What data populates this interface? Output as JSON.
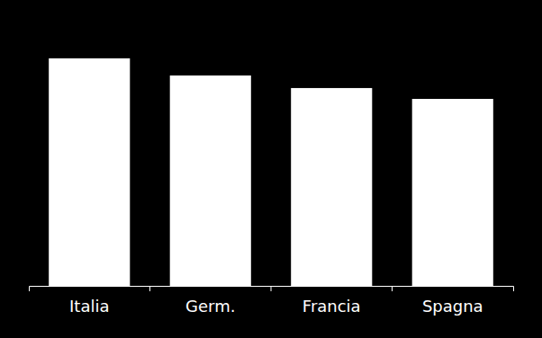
{
  "chart_data": {
    "type": "bar",
    "categories": [
      "Italia",
      "Germ.",
      "Francia",
      "Spagna"
    ],
    "values": [
      79.6,
      73.6,
      69.2,
      65.4
    ],
    "color": "#ffffff",
    "ylim": [
      0,
      100
    ],
    "tick_labels": "x"
  }
}
